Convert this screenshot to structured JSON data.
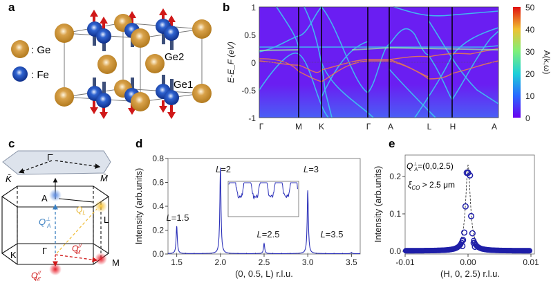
{
  "panels": {
    "a": {
      "label": "a",
      "legend": [
        {
          "atom": "Ge",
          "text": ": Ge",
          "color": "#c98a2a"
        },
        {
          "atom": "Fe",
          "text": ": Fe",
          "color": "#1e4fb5"
        }
      ],
      "site_labels": [
        "Ge2",
        "Ge1"
      ]
    },
    "b": {
      "label": "b"
    },
    "c": {
      "label": "c",
      "points": {
        "gamma_bar": "Γ̄",
        "k_bar": "K̄",
        "m_bar": "M̄",
        "A": "A",
        "L": "L",
        "K": "K",
        "Gamma": "Γ",
        "M": "M"
      },
      "vectors": {
        "qa_perp": "Q",
        "qa_sub": "A",
        "qa_sup": "⊥",
        "ql": "Q",
        "ql_sub": "L",
        "qm": "Q",
        "qm_sub": "M",
        "qm_sup": "//",
        "qmp": "Q",
        "qmp_sub": "M'",
        "qmp_sup": "//"
      }
    },
    "d": {
      "label": "d"
    },
    "e": {
      "label": "e",
      "annotation1": "=(0,0,2.5)",
      "annotation1_q": "Q",
      "annotation1_sub": "A",
      "annotation1_sup": "⊥",
      "annotation2": "ξ",
      "annotation2_sub": "CO",
      "annotation2_rest": " > 2.5 μm"
    }
  },
  "chart_data": [
    {
      "id": "b",
      "type": "heatmap",
      "ylabel": "E-E_F (eV)",
      "ylabel_text": "E-E",
      "ylabel_sub": "F",
      "ylabel_unit": " (eV)",
      "ylim": [
        -1,
        1
      ],
      "yticks": [
        "1",
        "0.5",
        "0",
        "-0.5",
        "-1"
      ],
      "xticks": [
        "Γ",
        "M",
        "K",
        "Γ",
        "A",
        "L",
        "H",
        "A"
      ],
      "colorbar": {
        "label": "A(k,ω)",
        "ticks": [
          "50",
          "40",
          "30",
          "20",
          "10",
          "0"
        ],
        "range": [
          0,
          50
        ]
      }
    },
    {
      "id": "d",
      "type": "line",
      "xlabel": "(0, 0.5, L) r.l.u.",
      "xlabel_pre": "(0, 0.5, ",
      "xlabel_it": "L",
      "xlabel_post": ") r.l.u.",
      "ylabel": "Intensity (arb.units)",
      "xlim": [
        1.4,
        3.6
      ],
      "ylim": [
        0,
        0.8
      ],
      "xticks": [
        "1.5",
        "2.0",
        "2.5",
        "3.0",
        "3.5"
      ],
      "yticks": [
        "0.8",
        "0.6",
        "0.4",
        "0.2",
        "0.0"
      ],
      "peaks": [
        {
          "L": 1.5,
          "I": 0.23,
          "label": "=1.5"
        },
        {
          "L": 2.0,
          "I": 0.72,
          "label": "=2"
        },
        {
          "L": 2.5,
          "I": 0.085,
          "label": "=2.5"
        },
        {
          "L": 3.0,
          "I": 0.53,
          "label": "=3"
        },
        {
          "L": 3.5,
          "I": 0.01,
          "label": "=3.5"
        }
      ],
      "peak_label_prefix": "L",
      "series_color": "#2a2fb8"
    },
    {
      "id": "e",
      "type": "scatter",
      "xlabel": "(H, 0, 2.5) r.l.u.",
      "xlabel_pre": "(",
      "xlabel_it": "H",
      "xlabel_post": ", 0, 2.5) r.l.u.",
      "ylabel": "Intensity (arb.units)",
      "xlim": [
        -0.0102,
        0.0102
      ],
      "ylim": [
        0,
        0.26
      ],
      "xticks": [
        "-0.01",
        "0.00",
        "0.01"
      ],
      "yticks": [
        "0.2",
        "0.1",
        "0.0"
      ],
      "points": [
        [
          -0.0009,
          0.014
        ],
        [
          -0.0008,
          0.03
        ],
        [
          -0.0006,
          0.05
        ],
        [
          -0.0004,
          0.12
        ],
        [
          -0.0002,
          0.21
        ],
        [
          0.0,
          0.21
        ],
        [
          0.0003,
          0.203
        ],
        [
          0.0005,
          0.094
        ],
        [
          0.0007,
          0.048
        ],
        [
          0.0009,
          0.022
        ],
        [
          0.0011,
          0.012
        ]
      ],
      "series_color": "#1f1fa8"
    }
  ]
}
